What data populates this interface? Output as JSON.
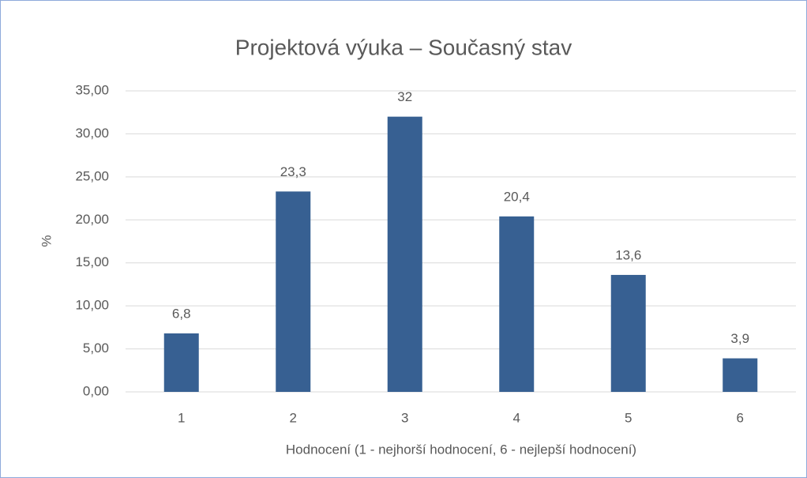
{
  "chart_data": {
    "type": "bar",
    "title": "Projektová výuka – Současný stav",
    "categories": [
      "1",
      "2",
      "3",
      "4",
      "5",
      "6"
    ],
    "values": [
      6.8,
      23.3,
      32,
      20.4,
      13.6,
      3.9
    ],
    "value_labels": [
      "6,8",
      "23,3",
      "32",
      "20,4",
      "13,6",
      "3,9"
    ],
    "color": "#376092",
    "ylim": [
      0,
      35
    ],
    "yticks": [
      {
        "value": 0,
        "label": "0,00"
      },
      {
        "value": 5,
        "label": "5,00"
      },
      {
        "value": 10,
        "label": "10,00"
      },
      {
        "value": 15,
        "label": "15,00"
      },
      {
        "value": 20,
        "label": "20,00"
      },
      {
        "value": 25,
        "label": "25,00"
      },
      {
        "value": 30,
        "label": "30,00"
      },
      {
        "value": 35,
        "label": "35,00"
      }
    ],
    "ylabel": "%",
    "xlabel": "Hodnocení (1 - nejhorší hodnocení, 6 - nejlepší hodnocení)",
    "grid": true
  }
}
